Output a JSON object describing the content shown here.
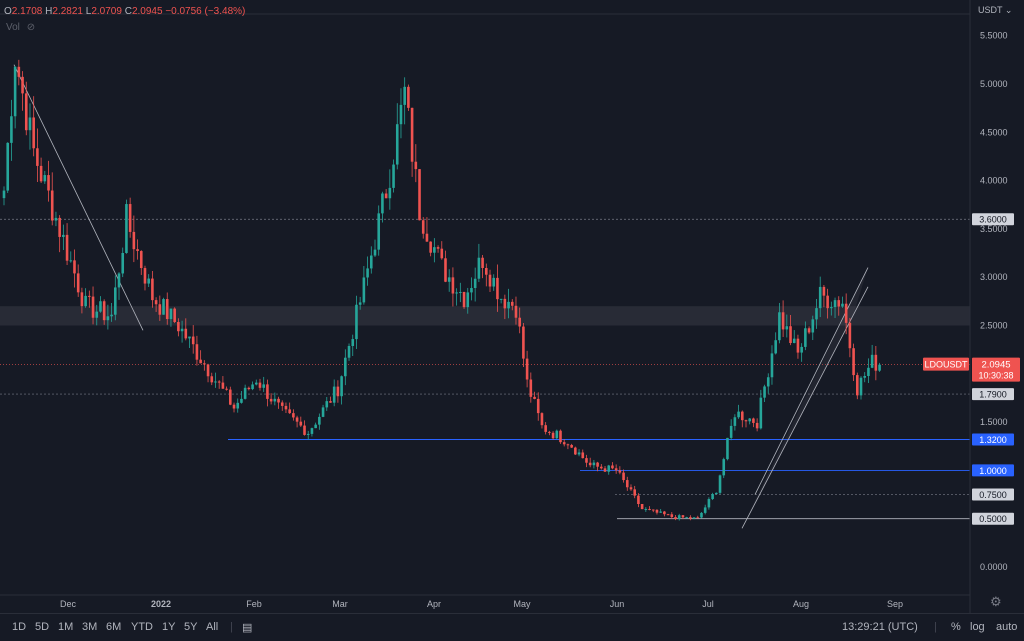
{
  "legend": {
    "o_label": "O",
    "o_value": "2.1708",
    "h_label": "H",
    "h_value": "2.2821",
    "l_label": "L",
    "l_value": "2.0709",
    "c_label": "C",
    "c_value": "2.0945",
    "change": "−0.0756 (−3.48%)",
    "vol_label": "Vol"
  },
  "axis": {
    "unit": "USDT"
  },
  "colors": {
    "up": "#26a69a",
    "down": "#ef5350",
    "bg": "#161a25",
    "blue": "#2962ff"
  },
  "chart_data": {
    "type": "candlestick",
    "symbol": "LDOUSDT",
    "last_price": "2.0945",
    "countdown": "10:30:38",
    "ylim": [
      -0.3,
      5.85
    ],
    "y_ticks": [
      "5.5000",
      "5.0000",
      "4.5000",
      "4.0000",
      "3.5000",
      "3.0000",
      "2.5000",
      "2.0000",
      "1.5000",
      "1.0000",
      "0.5000",
      "0.0000"
    ],
    "x_ticks": [
      "Dec",
      "2022",
      "Feb",
      "Mar",
      "Apr",
      "May",
      "Jun",
      "Jul",
      "Aug",
      "Sep"
    ],
    "price_levels": [
      {
        "value": 3.6,
        "label": "3.6000",
        "style": "dotted"
      },
      {
        "value": 1.79,
        "label": "1.7900",
        "style": "dotted"
      },
      {
        "value": 1.32,
        "label": "1.3200",
        "style": "solid-blue"
      },
      {
        "value": 1.0,
        "label": "1.0000",
        "style": "solid-blue"
      },
      {
        "value": 0.75,
        "label": "0.7500",
        "style": "dotted"
      },
      {
        "value": 0.5,
        "label": "0.5000",
        "style": "solid"
      }
    ],
    "resistance_zone": [
      2.5,
      2.7
    ],
    "anchors": [
      [
        0,
        3.9
      ],
      [
        3,
        5.3
      ],
      [
        8,
        4.3
      ],
      [
        15,
        3.5
      ],
      [
        22,
        2.7
      ],
      [
        29,
        2.6
      ],
      [
        33,
        3.6
      ],
      [
        40,
        2.8
      ],
      [
        47,
        2.5
      ],
      [
        55,
        2.05
      ],
      [
        62,
        1.65
      ],
      [
        68,
        1.95
      ],
      [
        75,
        1.6
      ],
      [
        82,
        1.4
      ],
      [
        90,
        1.85
      ],
      [
        97,
        2.9
      ],
      [
        103,
        3.9
      ],
      [
        108,
        4.9
      ],
      [
        112,
        3.7
      ],
      [
        118,
        3.1
      ],
      [
        124,
        2.8
      ],
      [
        129,
        3.2
      ],
      [
        134,
        2.8
      ],
      [
        138,
        2.7
      ],
      [
        141,
        1.9
      ],
      [
        145,
        1.45
      ],
      [
        152,
        1.3
      ],
      [
        158,
        1.05
      ],
      [
        165,
        1.0
      ],
      [
        172,
        0.6
      ],
      [
        180,
        0.52
      ],
      [
        187,
        0.5
      ],
      [
        192,
        0.8
      ],
      [
        197,
        1.6
      ],
      [
        203,
        1.5
      ],
      [
        209,
        2.6
      ],
      [
        214,
        2.2
      ],
      [
        220,
        2.8
      ],
      [
        226,
        2.75
      ],
      [
        230,
        1.85
      ],
      [
        234,
        2.12
      ],
      [
        236,
        2.0945
      ]
    ],
    "xlabel": "",
    "ylabel": ""
  },
  "toolbar": {
    "timeframes": [
      "1D",
      "5D",
      "1M",
      "3M",
      "6M",
      "YTD",
      "1Y",
      "5Y",
      "All"
    ],
    "clock": "13:29:21 (UTC)",
    "percent": "%",
    "log": "log",
    "auto": "auto"
  }
}
